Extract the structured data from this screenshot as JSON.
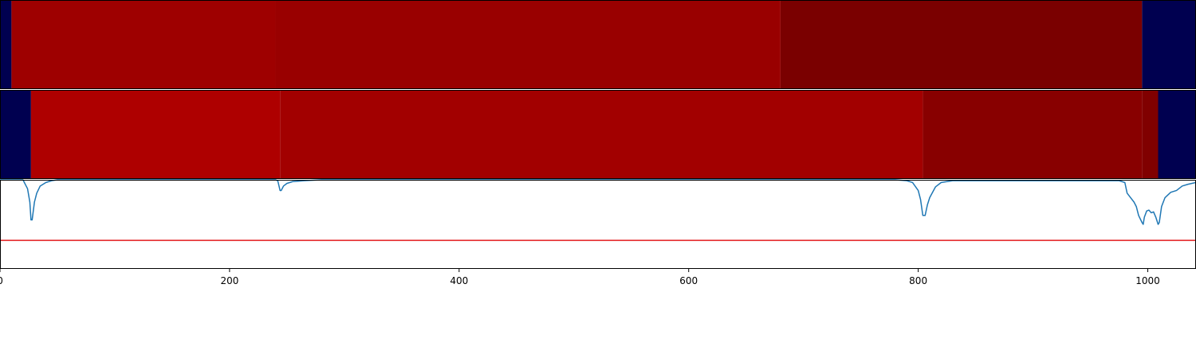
{
  "chart_data": {
    "type": "heatmap",
    "xlim": [
      0,
      1042
    ],
    "x_ticks": [
      "0",
      "200",
      "400",
      "600",
      "800",
      "1000"
    ],
    "x_tick_values": [
      0,
      200,
      400,
      600,
      800,
      1000
    ],
    "colors": {
      "background": "#000050",
      "threshold": "#e31a1c",
      "trace": "#1f77b4"
    },
    "tracks": [
      {
        "segments": [
          {
            "start": 0,
            "end": 10,
            "color": "#000050"
          },
          {
            "start": 10,
            "end": 240,
            "color": "#9e0000"
          },
          {
            "start": 240,
            "end": 680,
            "color": "#990000"
          },
          {
            "start": 680,
            "end": 995,
            "color": "#7a0000"
          },
          {
            "start": 995,
            "end": 1042,
            "color": "#000050"
          }
        ]
      },
      {
        "segments": [
          {
            "start": 0,
            "end": 27,
            "color": "#000050"
          },
          {
            "start": 27,
            "end": 244,
            "color": "#ae0000"
          },
          {
            "start": 244,
            "end": 804,
            "color": "#a20000"
          },
          {
            "start": 804,
            "end": 995,
            "color": "#880000"
          },
          {
            "start": 995,
            "end": 1009,
            "color": "#800000"
          },
          {
            "start": 1009,
            "end": 1042,
            "color": "#000050"
          }
        ]
      }
    ],
    "line_panel": {
      "ylim": [
        0,
        1
      ],
      "threshold": 0.32,
      "line": {
        "x": [
          0,
          15,
          20,
          24,
          26,
          27,
          28,
          30,
          32,
          35,
          40,
          45,
          50,
          240,
          242,
          244,
          245,
          247,
          250,
          255,
          265,
          280,
          300,
          760,
          780,
          790,
          795,
          800,
          802,
          804,
          806,
          808,
          810,
          815,
          820,
          830,
          850,
          900,
          960,
          975,
          980,
          982,
          985,
          988,
          990,
          992,
          995,
          996,
          997,
          999,
          1001,
          1003,
          1005,
          1007,
          1009,
          1010,
          1012,
          1015,
          1020,
          1025,
          1030,
          1035,
          1042
        ],
        "y": [
          1.0,
          1.0,
          1.0,
          0.9,
          0.75,
          0.55,
          0.55,
          0.75,
          0.85,
          0.93,
          0.97,
          0.99,
          1.0,
          1.0,
          0.99,
          0.88,
          0.88,
          0.93,
          0.96,
          0.98,
          0.99,
          1.0,
          1.0,
          1.0,
          1.0,
          0.99,
          0.97,
          0.88,
          0.78,
          0.6,
          0.6,
          0.72,
          0.8,
          0.92,
          0.97,
          0.99,
          0.99,
          0.99,
          0.99,
          0.99,
          0.97,
          0.85,
          0.8,
          0.75,
          0.7,
          0.6,
          0.52,
          0.5,
          0.58,
          0.65,
          0.66,
          0.63,
          0.64,
          0.58,
          0.5,
          0.52,
          0.7,
          0.8,
          0.86,
          0.88,
          0.93,
          0.95,
          0.97
        ]
      }
    }
  }
}
